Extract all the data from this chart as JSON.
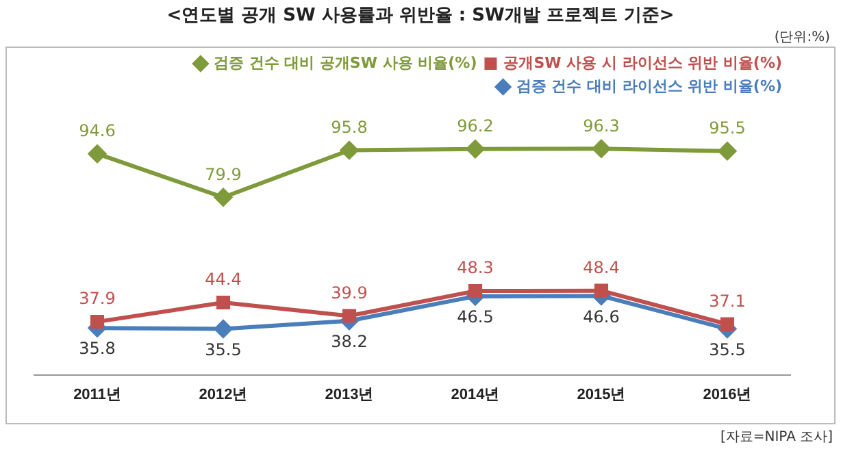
{
  "chart_data": {
    "type": "line",
    "title": "<연도별 공개 SW 사용률과 위반율 : SW개발 프로젝트 기준>",
    "categories": [
      "2011년",
      "2012년",
      "2013년",
      "2014년",
      "2015년",
      "2016년"
    ],
    "series": [
      {
        "name": "검증 건수 대비 공개SW 사용 비율(%)",
        "color": "#7f9a3a",
        "marker": "diamond",
        "values": [
          94.6,
          79.9,
          95.8,
          96.2,
          96.3,
          95.5
        ]
      },
      {
        "name": "공개SW 사용 시 라이선스 위반 비율(%)",
        "color": "#c0504d",
        "marker": "square",
        "values": [
          37.9,
          44.4,
          39.9,
          48.3,
          48.4,
          37.1
        ]
      },
      {
        "name": "검증 건수 대비 라이선스 위반 비율(%)",
        "color": "#4a7ebb",
        "marker": "diamond",
        "values": [
          35.8,
          35.5,
          38.2,
          46.5,
          46.6,
          35.5
        ]
      }
    ],
    "data_labels": true,
    "legend": "top right",
    "grid": false,
    "annotations": [
      "(단위:%)",
      "[자료=NIPA 조사]"
    ]
  }
}
